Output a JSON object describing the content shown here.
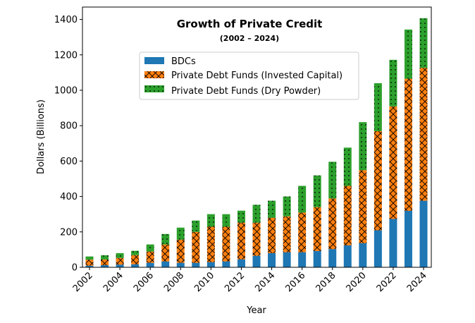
{
  "chart_data": {
    "type": "bar",
    "stacked": true,
    "title": "Growth of Private Credit",
    "subtitle": "(2002 – 2024)",
    "xlabel": "Year",
    "ylabel": "Dollars (Billions)",
    "ylim": [
      0,
      1470
    ],
    "yticks": [
      0,
      200,
      400,
      600,
      800,
      1000,
      1200,
      1400
    ],
    "xtick_labels": [
      "2002",
      "2004",
      "2006",
      "2008",
      "2010",
      "2012",
      "2014",
      "2016",
      "2018",
      "2020",
      "2022",
      "2024"
    ],
    "grid": false,
    "legend_position": "upper-center",
    "categories": [
      "2002",
      "2003",
      "2004",
      "2005",
      "2006",
      "2007",
      "2008",
      "2009",
      "2010",
      "2011",
      "2012",
      "2013",
      "2014",
      "2015",
      "2016",
      "2017",
      "2018",
      "2019",
      "2020",
      "2021",
      "2022",
      "2023",
      "2024"
    ],
    "series": [
      {
        "name": "BDCs",
        "color": "#1f77b4",
        "hatch": "none",
        "values": [
          9,
          12,
          15,
          17,
          25,
          33,
          25,
          25,
          29,
          33,
          45,
          65,
          80,
          85,
          85,
          92,
          103,
          124,
          136,
          209,
          273,
          319,
          376
        ]
      },
      {
        "name": "Private Debt Funds (Invested Capital)",
        "color": "#ff7f0e",
        "hatch": "crosshatch",
        "values": [
          34,
          32,
          38,
          52,
          64,
          96,
          131,
          175,
          200,
          196,
          207,
          187,
          200,
          203,
          224,
          248,
          286,
          336,
          413,
          560,
          636,
          746,
          751
        ]
      },
      {
        "name": "Private Debt Funds (Dry Powder)",
        "color": "#2ca02c",
        "hatch": "dots",
        "values": [
          18,
          24,
          27,
          24,
          40,
          59,
          68,
          64,
          71,
          71,
          68,
          101,
          96,
          112,
          151,
          179,
          207,
          216,
          271,
          271,
          263,
          278,
          280
        ]
      }
    ]
  }
}
